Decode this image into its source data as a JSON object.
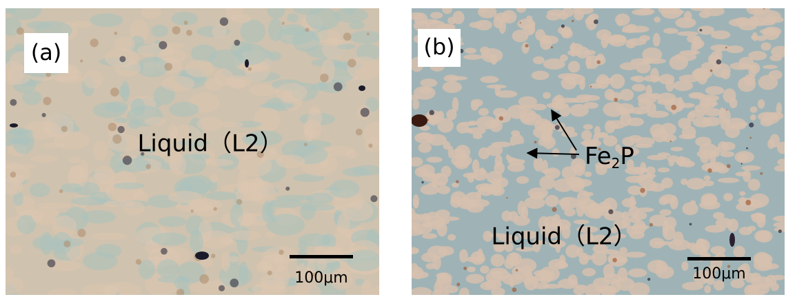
{
  "panels": [
    {
      "tag": "(a)",
      "label": "Liquid（L2）",
      "scale_bar": "100μm"
    },
    {
      "tag": "(b)",
      "label": "Liquid（L2）",
      "annotation": [
        "Fe",
        "2",
        "P"
      ],
      "scale_bar": "100μm"
    }
  ]
}
